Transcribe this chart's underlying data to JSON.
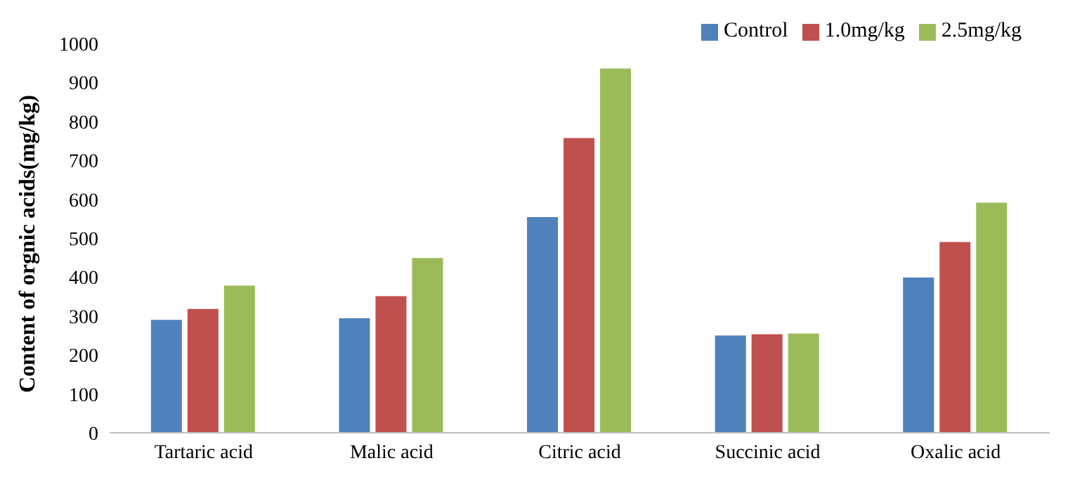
{
  "chart_data": {
    "type": "bar",
    "ylabel": "Content of orgnic acids(mg/kg)",
    "categories": [
      "Tartaric acid",
      "Malic acid",
      "Citric acid",
      "Succinic acid",
      "Oxalic acid"
    ],
    "series": [
      {
        "name": "Control",
        "color": "#4f81bd",
        "values": [
          290,
          294,
          554,
          250,
          399
        ]
      },
      {
        "name": "1.0mg/kg",
        "color": "#c0504d",
        "values": [
          318,
          351,
          757,
          253,
          490
        ]
      },
      {
        "name": "2.5mg/kg",
        "color": "#9bbb59",
        "values": [
          378,
          449,
          936,
          255,
          591
        ]
      }
    ],
    "ylim": [
      0,
      1000
    ],
    "yticks": [
      0,
      100,
      200,
      300,
      400,
      500,
      600,
      700,
      800,
      900,
      1000
    ],
    "grid": false,
    "legend": "top right"
  }
}
